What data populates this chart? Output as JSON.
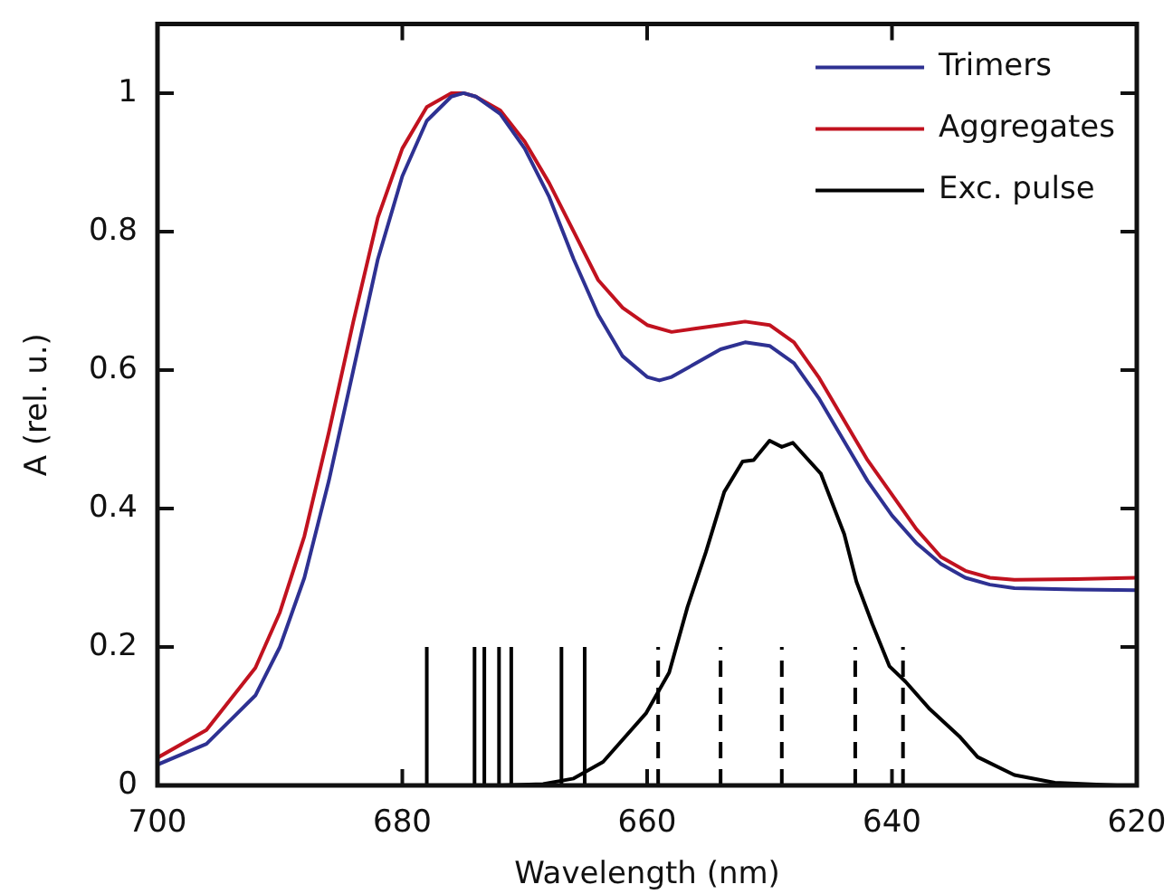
{
  "chart_data": {
    "type": "line",
    "xlabel": "Wavelength (nm)",
    "ylabel": "A (rel. u.)",
    "xlim": [
      700,
      620
    ],
    "xticks": [
      700,
      680,
      660,
      640,
      620
    ],
    "ylim": [
      0,
      1.1
    ],
    "yticks": [
      0,
      0.2,
      0.4,
      0.6,
      0.8,
      1
    ],
    "grid": false,
    "legend": "top right",
    "marker": "none",
    "series": [
      {
        "name": "Trimers",
        "color": "#2e3192",
        "x": [
          700,
          696,
          692,
          690,
          688,
          686,
          684,
          682,
          680,
          678,
          676,
          675,
          674,
          672,
          670,
          668,
          666,
          664,
          662,
          660,
          659,
          658,
          656,
          654,
          652,
          650,
          648,
          646,
          644,
          642,
          640,
          638,
          636,
          634,
          632,
          630,
          625,
          620
        ],
        "values": [
          0.03,
          0.06,
          0.13,
          0.2,
          0.3,
          0.44,
          0.6,
          0.76,
          0.88,
          0.96,
          0.995,
          1.0,
          0.995,
          0.97,
          0.92,
          0.85,
          0.76,
          0.68,
          0.62,
          0.59,
          0.585,
          0.59,
          0.61,
          0.63,
          0.64,
          0.635,
          0.61,
          0.56,
          0.5,
          0.44,
          0.39,
          0.35,
          0.32,
          0.3,
          0.29,
          0.285,
          0.283,
          0.282
        ]
      },
      {
        "name": "Aggregates",
        "color": "#c1121f",
        "x": [
          700,
          696,
          692,
          690,
          688,
          686,
          684,
          682,
          680,
          678,
          676,
          675,
          674,
          672,
          670,
          668,
          666,
          664,
          662,
          660,
          658,
          656,
          654,
          652,
          650,
          648,
          646,
          644,
          642,
          640,
          638,
          636,
          634,
          632,
          630,
          625,
          620
        ],
        "values": [
          0.04,
          0.08,
          0.17,
          0.25,
          0.36,
          0.51,
          0.67,
          0.82,
          0.92,
          0.98,
          1.0,
          1.0,
          0.995,
          0.975,
          0.93,
          0.87,
          0.8,
          0.73,
          0.69,
          0.665,
          0.655,
          0.66,
          0.665,
          0.67,
          0.665,
          0.64,
          0.59,
          0.53,
          0.47,
          0.42,
          0.37,
          0.33,
          0.31,
          0.3,
          0.297,
          0.298,
          0.3
        ]
      },
      {
        "name": "Exc. pulse",
        "color": "#000000",
        "x": [
          700,
          672,
          668.5,
          666,
          663.6,
          660.1,
          658.2,
          656.7,
          655.2,
          653.7,
          652.2,
          651.3,
          650.0,
          649.0,
          648.1,
          645.8,
          643.9,
          642.9,
          641.6,
          640.2,
          638.9,
          636.9,
          634.5,
          633.0,
          630.0,
          626.7,
          621.6,
          620
        ],
        "values": [
          0,
          0,
          0.002,
          0.01,
          0.034,
          0.104,
          0.163,
          0.258,
          0.337,
          0.424,
          0.468,
          0.47,
          0.498,
          0.489,
          0.495,
          0.45,
          0.363,
          0.294,
          0.233,
          0.172,
          0.15,
          0.11,
          0.071,
          0.041,
          0.015,
          0.004,
          0,
          0
        ]
      },
      {
        "color": "#000000",
        "line_style": "solid",
        "x": [
          678,
          678
        ],
        "values": [
          0,
          0.2
        ]
      },
      {
        "color": "#000000",
        "line_style": "solid",
        "x": [
          674.1,
          674.1
        ],
        "values": [
          0,
          0.2
        ]
      },
      {
        "color": "#000000",
        "line_style": "solid",
        "x": [
          673.3,
          673.3
        ],
        "values": [
          0,
          0.2
        ]
      },
      {
        "color": "#000000",
        "line_style": "solid",
        "x": [
          672.1,
          672.1
        ],
        "values": [
          0,
          0.2
        ]
      },
      {
        "color": "#000000",
        "line_style": "solid",
        "x": [
          671.1,
          671.1
        ],
        "values": [
          0,
          0.2
        ]
      },
      {
        "color": "#000000",
        "line_style": "solid",
        "x": [
          667,
          667
        ],
        "values": [
          0,
          0.2
        ]
      },
      {
        "color": "#000000",
        "line_style": "solid",
        "x": [
          665.1,
          665.1
        ],
        "values": [
          0,
          0.2
        ]
      },
      {
        "color": "#000000",
        "line_style": "dashed",
        "x": [
          659.1,
          659.1
        ],
        "values": [
          0,
          0.2
        ]
      },
      {
        "color": "#000000",
        "line_style": "dashed",
        "x": [
          654,
          654
        ],
        "values": [
          0,
          0.2
        ]
      },
      {
        "color": "#000000",
        "line_style": "dashed",
        "x": [
          649,
          649
        ],
        "values": [
          0,
          0.2
        ]
      },
      {
        "color": "#000000",
        "line_style": "dashed",
        "x": [
          643,
          643
        ],
        "values": [
          0,
          0.2
        ]
      },
      {
        "color": "#000000",
        "line_style": "dashed",
        "x": [
          639.1,
          639.1
        ],
        "values": [
          0,
          0.2
        ]
      }
    ]
  }
}
